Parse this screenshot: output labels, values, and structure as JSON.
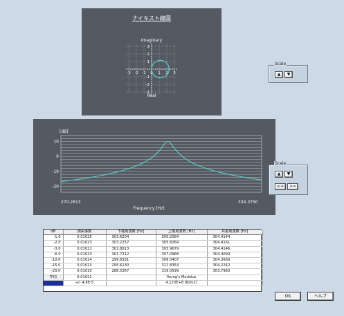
{
  "nyquist": {
    "title": "ナイキスト線図",
    "imaginary_label": "Imaginary",
    "real_label": "Real",
    "x_ticks": [
      "-3",
      "-2",
      "-1",
      "0",
      "1",
      "2",
      "3"
    ],
    "y_ticks": [
      "3",
      "2",
      "1",
      "-1",
      "-2",
      "-3"
    ],
    "curve_color": "#5fc9c4",
    "chart_data": {
      "type": "scatter",
      "circle_center": [
        1.15,
        0
      ],
      "circle_radius": 1.15,
      "xlim": [
        -3,
        3
      ],
      "ylim": [
        -3,
        3
      ]
    }
  },
  "scale_top": {
    "label": "Scale",
    "up": "▲",
    "down": "▼"
  },
  "scale_bottom": {
    "label": "Scale",
    "up": "▲",
    "down": "▼",
    "expand": "<>",
    "shrink": "><"
  },
  "spectrum": {
    "ylabel": "[dB]",
    "y_ticks": [
      "10",
      "0",
      "-10",
      "-20"
    ],
    "x_min_label": "270.2613",
    "x_max_label": "334.3750",
    "xlabel": "Frequency [Hz]",
    "curve_color": "#5fc9c4",
    "chart_data": {
      "type": "line",
      "x_range": [
        270.2613,
        334.375
      ],
      "ylim": [
        -24,
        14
      ],
      "peak_x": 304.41,
      "peak_db": 10,
      "edge_db": -18
    }
  },
  "table": {
    "headers": [
      "dB",
      "損失係数",
      "下端周波数 [Hz]",
      "上端周波数 [Hz]",
      "共振周波数 [Hz]"
    ],
    "rows": [
      [
        "-1.0",
        "0.01025",
        "303.6204",
        "305.2084",
        "304.4144"
      ],
      [
        "-2.0",
        "0.01023",
        "303.2257",
        "305.6064",
        "304.4161"
      ],
      [
        "-3.0",
        "0.01021",
        "302.8613",
        "305.9679",
        "304.4146"
      ],
      [
        "-6.0",
        "0.01023",
        "301.7212",
        "307.0968",
        "304.4090"
      ],
      [
        "-10.0",
        "0.01024",
        "299.6931",
        "309.0407",
        "304.3669"
      ],
      [
        "-15.0",
        "0.01023",
        "295.6130",
        "312.8354",
        "304.2242"
      ],
      [
        "-20.0",
        "0.01010",
        "288.5367",
        "319.0599",
        "303.7983"
      ]
    ],
    "avg_label": "平均",
    "avg_value": "0.01021",
    "dev_value": "+/- 4.8E-5",
    "youngs_label": "Young's Modulus",
    "youngs_value": "4.123E+8 [N/m2]"
  },
  "buttons": {
    "ok": "OK",
    "help": "ヘルプ"
  }
}
